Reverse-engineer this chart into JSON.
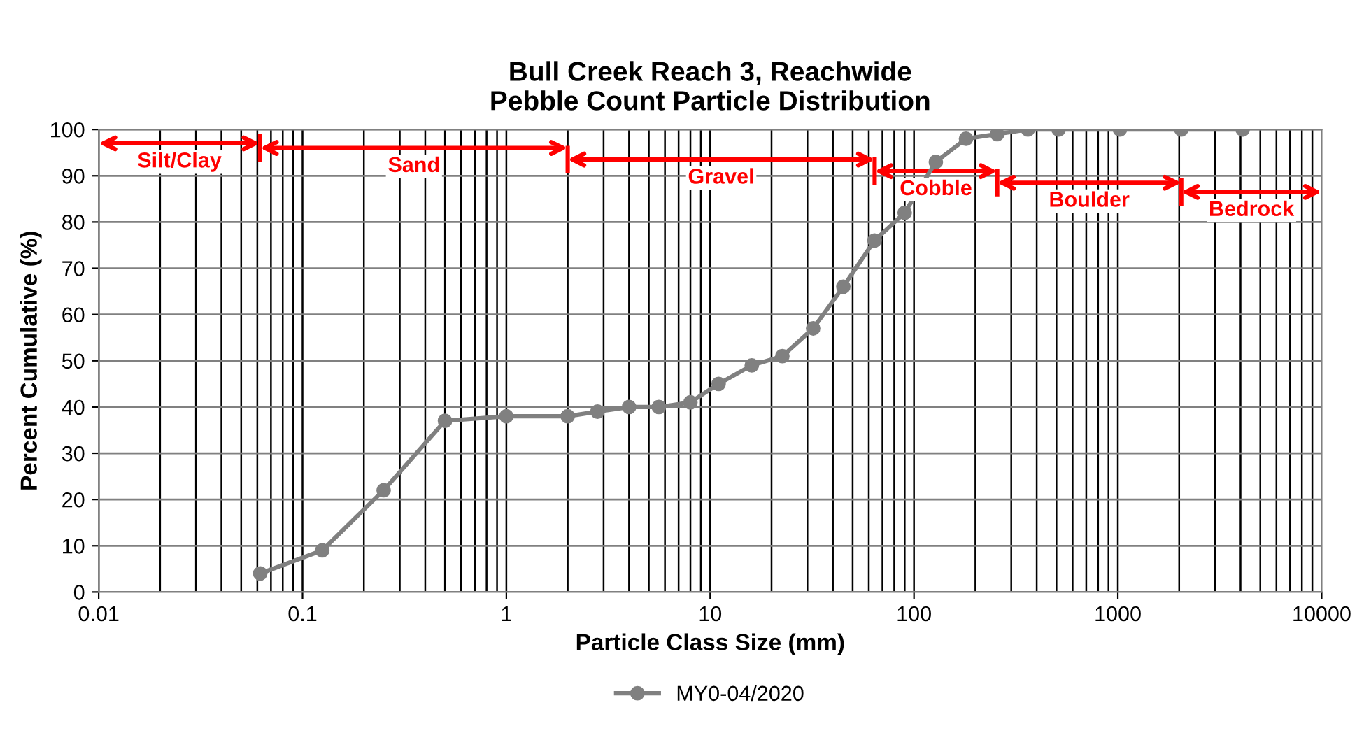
{
  "chart_data": {
    "type": "line",
    "title": "Bull Creek Reach 3, Reachwide\nPebble Count Particle Distribution",
    "xlabel": "Particle Class Size (mm)",
    "ylabel": "Percent Cumulative (%)",
    "log": "x",
    "xlim": [
      0.01,
      10000
    ],
    "xticks": [
      {
        "value": 0.01,
        "label": "0.01"
      },
      {
        "value": 0.1,
        "label": "0.1"
      },
      1,
      10,
      100,
      1000,
      10000
    ],
    "ylim": [
      0,
      100
    ],
    "yticks": [
      0,
      10,
      20,
      30,
      40,
      50,
      60,
      70,
      80,
      90,
      100
    ],
    "grid": true,
    "legend": "bottom",
    "marker": "circle",
    "line_style": "solid",
    "series": [
      {
        "name": "MY0-04/2020",
        "color": "#808080",
        "x": [
          0.062,
          0.125,
          0.25,
          0.5,
          1,
          2,
          2.8,
          4,
          5.6,
          8,
          11,
          16,
          22.6,
          32,
          45,
          64,
          90,
          128,
          180,
          256,
          362,
          512,
          1024,
          2048,
          4096
        ],
        "values": [
          4,
          9,
          22,
          37,
          38,
          38,
          39,
          40,
          40,
          41,
          45,
          49,
          51,
          57,
          66,
          76,
          82,
          93,
          98,
          99,
          100,
          100,
          100,
          100,
          100
        ]
      }
    ],
    "annotations": [
      "Silt/Clay",
      "Sand",
      "Gravel",
      "Cobble",
      "Boulder",
      "Bedrock"
    ]
  }
}
